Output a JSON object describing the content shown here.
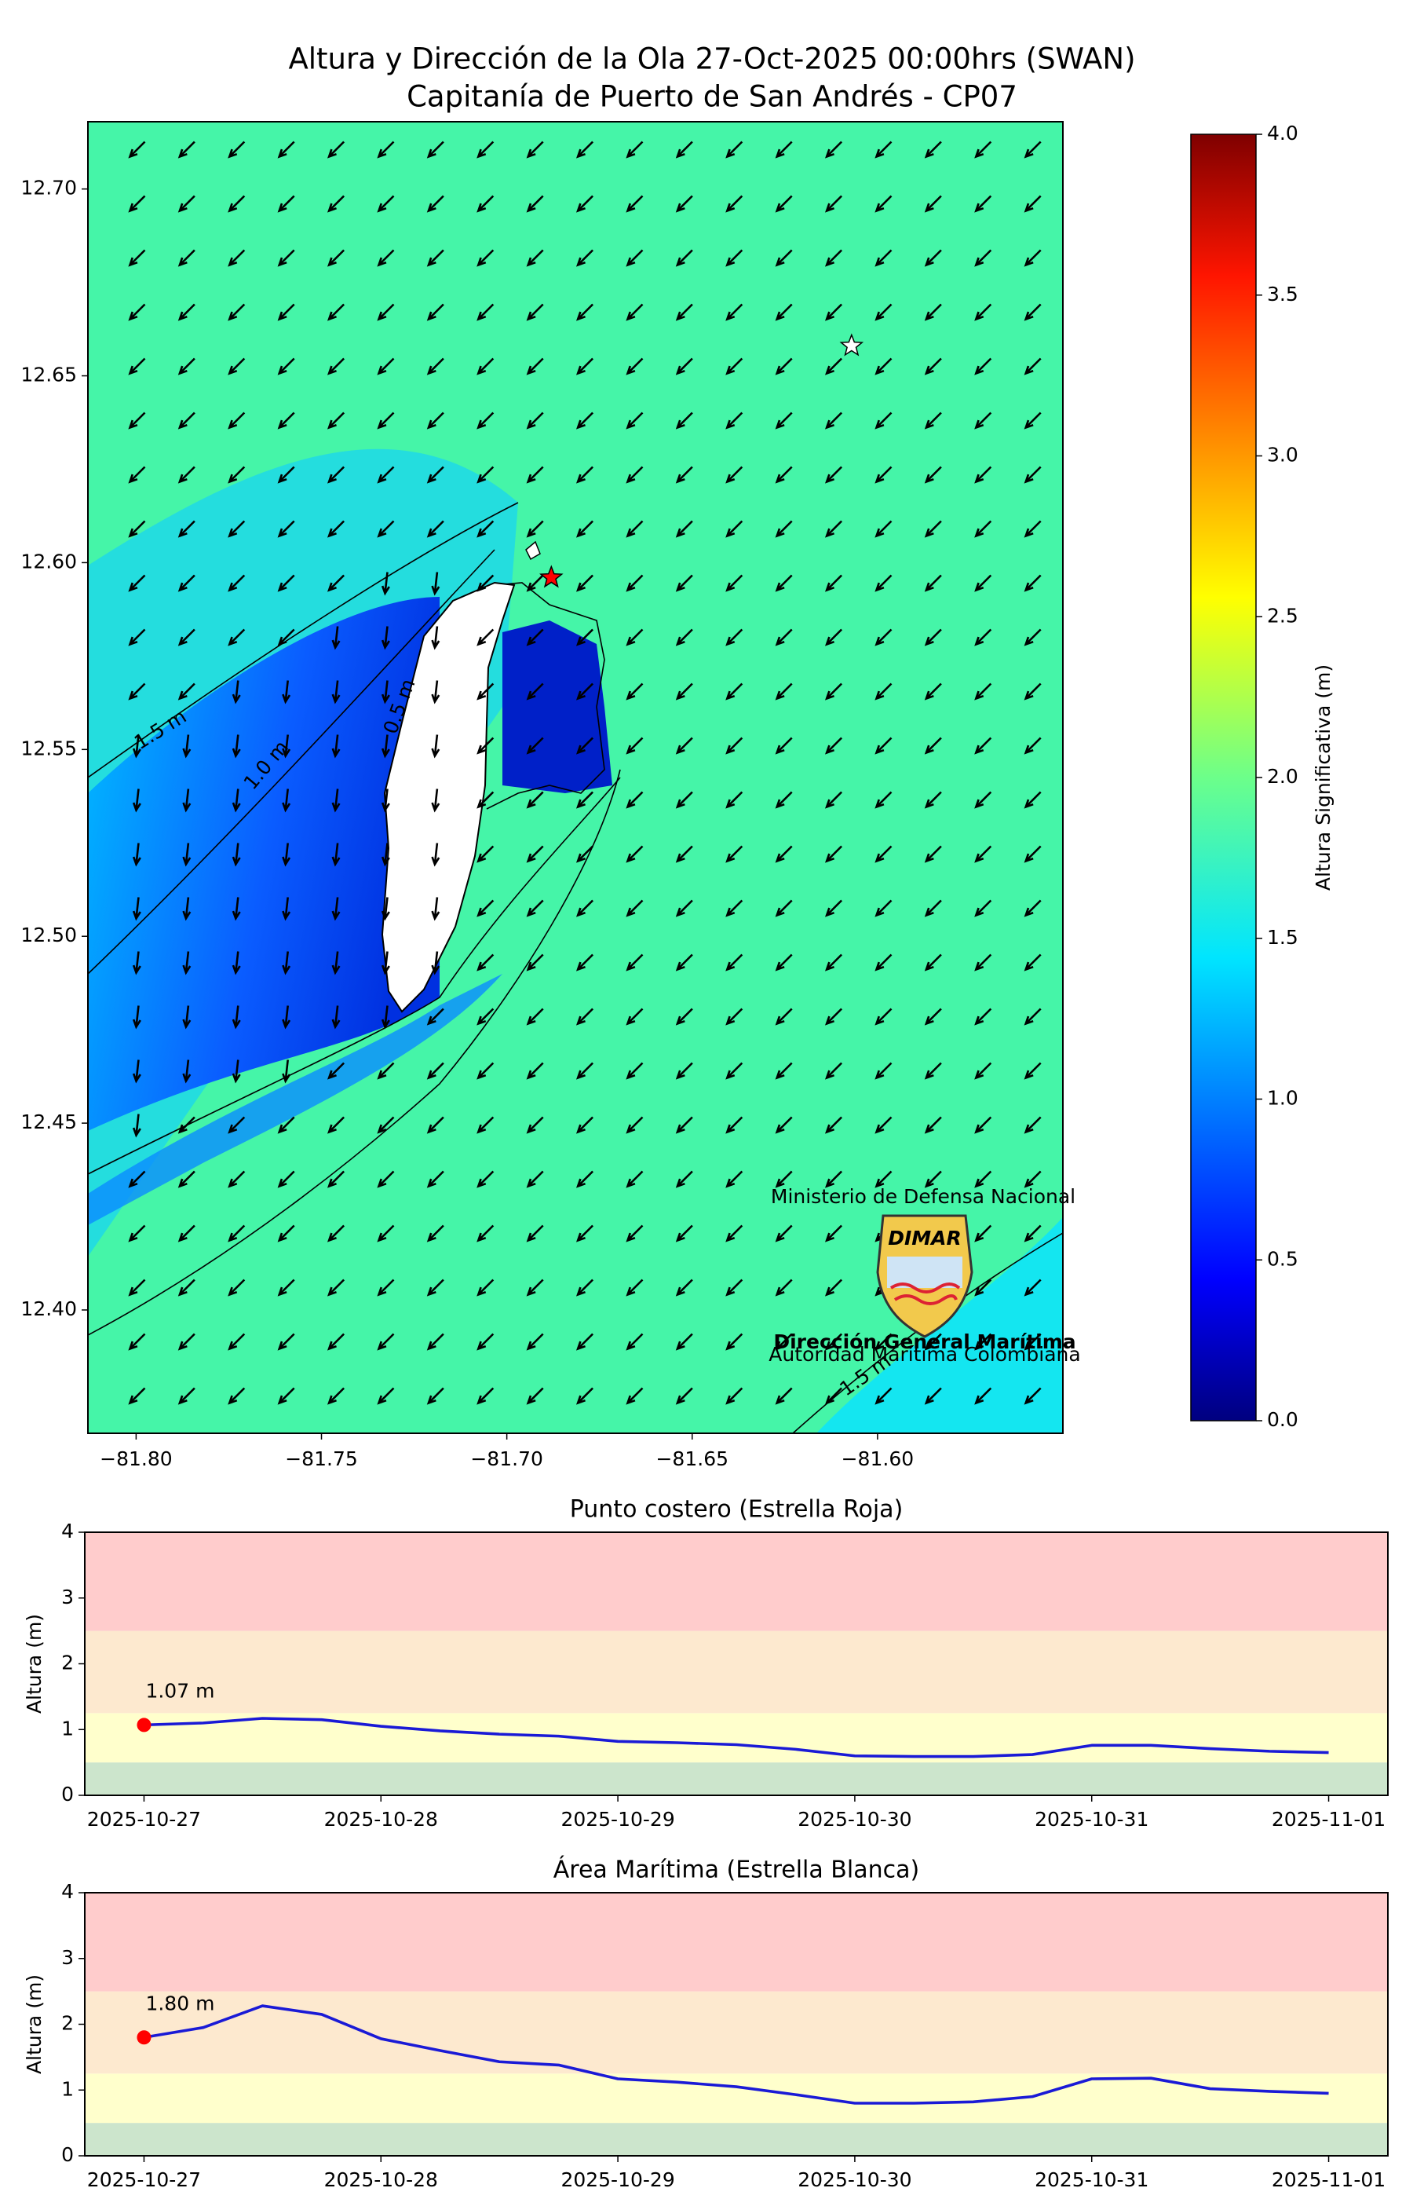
{
  "chart_data": [
    {
      "type": "map",
      "title": "Altura y Dirección de la Ola 27-Oct-2025 00:00hrs (SWAN)",
      "subtitle": "Capitanía de Puerto de San Andrés - CP07",
      "xlim": [
        -81.813,
        -81.55
      ],
      "xticks": [
        {
          "value": -81.8,
          "label": "−81.80"
        },
        {
          "value": -81.75,
          "label": "−81.75"
        },
        {
          "value": -81.7,
          "label": "−81.70"
        },
        {
          "value": -81.65,
          "label": "−81.65"
        },
        {
          "value": -81.6,
          "label": "−81.60"
        }
      ],
      "ylim": [
        12.367,
        12.718
      ],
      "yticks": [
        {
          "value": 12.4,
          "label": "12.40"
        },
        {
          "value": 12.45,
          "label": "12.45"
        },
        {
          "value": 12.5,
          "label": "12.50"
        },
        {
          "value": 12.55,
          "label": "12.55"
        },
        {
          "value": 12.6,
          "label": "12.60"
        },
        {
          "value": 12.65,
          "label": "12.65"
        },
        {
          "value": 12.7,
          "label": "12.70"
        }
      ],
      "colorbar": {
        "label": "Altura Significativa (m)",
        "colormap": "jet",
        "lim": [
          0,
          4
        ],
        "ticks": [
          {
            "value": 0,
            "label": "0.0"
          },
          {
            "value": 0.5,
            "label": "0.5"
          },
          {
            "value": 1,
            "label": "1.0"
          },
          {
            "value": 1.5,
            "label": "1.5"
          },
          {
            "value": 2,
            "label": "2.0"
          },
          {
            "value": 2.5,
            "label": "2.5"
          },
          {
            "value": 3,
            "label": "3.0"
          },
          {
            "value": 3.5,
            "label": "3.5"
          },
          {
            "value": 4,
            "label": "4.0"
          }
        ]
      },
      "contour_labels": [
        "1.5 m",
        "1.0 m",
        "0.5 m",
        "1.5 m"
      ],
      "points": {
        "x": [
          -81.688,
          -81.607
        ],
        "y": [
          12.596,
          12.658
        ],
        "colors": [
          "#ff0000",
          "#ffffff"
        ]
      },
      "logo": {
        "top": "Ministerio de Defensa Nacional",
        "brand": "DIMAR",
        "name": "Dirección General Marítima",
        "motto": "Autoridad Marítima Colombiana"
      }
    },
    {
      "type": "line",
      "title": "Punto costero (Estrella Roja)",
      "ylabel": "Altura (m)",
      "x": [
        0,
        0.25,
        0.5,
        0.75,
        1,
        1.25,
        1.5,
        1.75,
        2,
        2.25,
        2.5,
        2.75,
        3,
        3.25,
        3.5,
        3.75,
        4,
        4.25,
        4.5,
        4.75,
        5
      ],
      "series": [
        {
          "color": "#1a1ad6",
          "values": [
            1.07,
            1.1,
            1.17,
            1.15,
            1.05,
            0.98,
            0.93,
            0.9,
            0.82,
            0.8,
            0.77,
            0.7,
            0.6,
            0.59,
            0.59,
            0.62,
            0.76,
            0.76,
            0.71,
            0.67,
            0.65
          ],
          "value_labels": [
            "1.07 m",
            null,
            null,
            null,
            null,
            null,
            null,
            null,
            null,
            null,
            null,
            null,
            null,
            null,
            null,
            null,
            null,
            null,
            null,
            null,
            null
          ]
        }
      ],
      "marker_color": "#ff0000",
      "bands": [
        {
          "from": 0,
          "to": 0.5,
          "color": "#cce5cc"
        },
        {
          "from": 0.5,
          "to": 1.25,
          "color": "#ffffcc"
        },
        {
          "from": 1.25,
          "to": 2.5,
          "color": "#fde9cf"
        },
        {
          "from": 2.5,
          "to": 4,
          "color": "#ffcccc"
        }
      ],
      "xlim": [
        -0.25,
        5.25
      ],
      "xticks": [
        {
          "value": 0,
          "label": "2025-10-27"
        },
        {
          "value": 1,
          "label": "2025-10-28"
        },
        {
          "value": 2,
          "label": "2025-10-29"
        },
        {
          "value": 3,
          "label": "2025-10-30"
        },
        {
          "value": 4,
          "label": "2025-10-31"
        },
        {
          "value": 5,
          "label": "2025-11-01"
        }
      ],
      "ylim": [
        0,
        4
      ],
      "yticks": [
        0,
        1,
        2,
        3,
        4
      ]
    },
    {
      "type": "line",
      "title": "Área Marítima (Estrella Blanca)",
      "ylabel": "Altura (m)",
      "x": [
        0,
        0.25,
        0.5,
        0.75,
        1,
        1.25,
        1.5,
        1.75,
        2,
        2.25,
        2.5,
        2.75,
        3,
        3.25,
        3.5,
        3.75,
        4,
        4.25,
        4.5,
        4.75,
        5
      ],
      "series": [
        {
          "color": "#1a1ad6",
          "values": [
            1.8,
            1.95,
            2.28,
            2.15,
            1.78,
            1.6,
            1.43,
            1.38,
            1.17,
            1.12,
            1.05,
            0.93,
            0.8,
            0.8,
            0.82,
            0.9,
            1.17,
            1.18,
            1.02,
            0.98,
            0.95
          ],
          "value_labels": [
            "1.80 m",
            null,
            null,
            null,
            null,
            null,
            null,
            null,
            null,
            null,
            null,
            null,
            null,
            null,
            null,
            null,
            null,
            null,
            null,
            null,
            null
          ]
        }
      ],
      "marker_color": "#ff0000",
      "bands": [
        {
          "from": 0,
          "to": 0.5,
          "color": "#cce5cc"
        },
        {
          "from": 0.5,
          "to": 1.25,
          "color": "#ffffcc"
        },
        {
          "from": 1.25,
          "to": 2.5,
          "color": "#fde9cf"
        },
        {
          "from": 2.5,
          "to": 4,
          "color": "#ffcccc"
        }
      ],
      "xlim": [
        -0.25,
        5.25
      ],
      "xticks": [
        {
          "value": 0,
          "label": "2025-10-27"
        },
        {
          "value": 1,
          "label": "2025-10-28"
        },
        {
          "value": 2,
          "label": "2025-10-29"
        },
        {
          "value": 3,
          "label": "2025-10-30"
        },
        {
          "value": 4,
          "label": "2025-10-31"
        },
        {
          "value": 5,
          "label": "2025-11-01"
        }
      ],
      "ylim": [
        0,
        4
      ],
      "yticks": [
        0,
        1,
        2,
        3,
        4
      ]
    }
  ]
}
